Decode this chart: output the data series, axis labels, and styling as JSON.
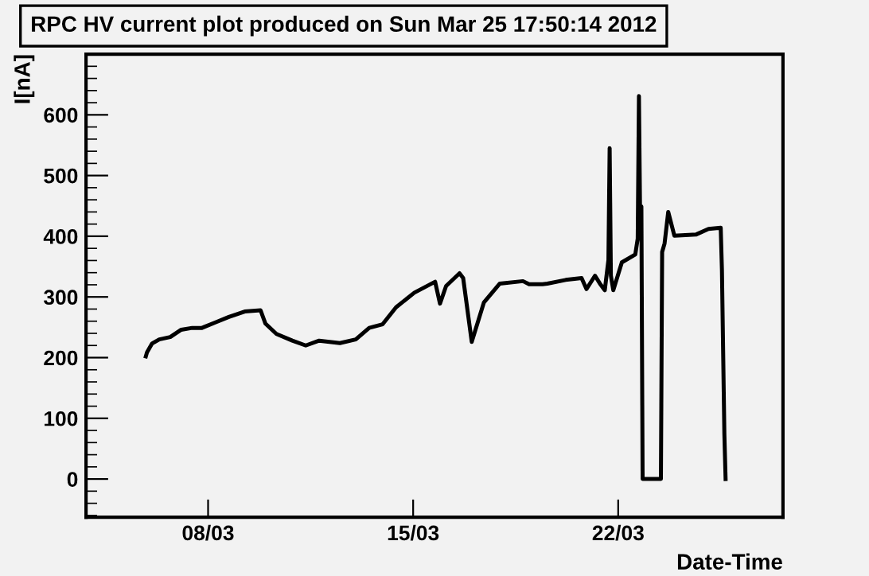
{
  "chart_data": {
    "type": "line",
    "title": "RPC HV current plot produced on Sun Mar 25 17:50:14 2012",
    "xlabel": "Date-Time",
    "ylabel": "I[nA]",
    "x": [
      "2012-03-05T21:00",
      "2012-03-05T22:00",
      "2012-03-06T02:00",
      "2012-03-06T08:00",
      "2012-03-06T17:00",
      "2012-03-07T02:00",
      "2012-03-07T11:00",
      "2012-03-07T19:00",
      "2012-03-08T06:00",
      "2012-03-08T17:00",
      "2012-03-09T06:00",
      "2012-03-09T19:00",
      "2012-03-09T23:00",
      "2012-03-10T08:00",
      "2012-03-10T21:00",
      "2012-03-11T08:00",
      "2012-03-11T19:00",
      "2012-03-12T12:00",
      "2012-03-13T01:00",
      "2012-03-13T12:00",
      "2012-03-13T23:00",
      "2012-03-14T10:00",
      "2012-03-15T01:00",
      "2012-03-15T18:00",
      "2012-03-15T22:00",
      "2012-03-16T03:00",
      "2012-03-16T14:00",
      "2012-03-16T17:00",
      "2012-03-17T00:00",
      "2012-03-17T10:00",
      "2012-03-17T23:00",
      "2012-03-18T18:00",
      "2012-03-18T23:00",
      "2012-03-19T10:00",
      "2012-03-19T14:00",
      "2012-03-20T05:00",
      "2012-03-20T18:00",
      "2012-03-20T22:00",
      "2012-03-21T05:00",
      "2012-03-21T09:00",
      "2012-03-21T13:00",
      "2012-03-21T16:00",
      "2012-03-21T17:00",
      "2012-03-21T18:00",
      "2012-03-21T20:00",
      "2012-03-22T03:00",
      "2012-03-22T14:00",
      "2012-03-22T16:00",
      "2012-03-22T17:00",
      "2012-03-22T18:00",
      "2012-03-22T19:00",
      "2012-03-22T20:00",
      "2012-03-23T11:00",
      "2012-03-23T12:00",
      "2012-03-23T14:00",
      "2012-03-23T17:00",
      "2012-03-23T22:00",
      "2012-03-24T16:00",
      "2012-03-25T02:00",
      "2012-03-25T12:00",
      "2012-03-25T13:00",
      "2012-03-25T14:00",
      "2012-03-25T15:00",
      "2012-03-25T16:00"
    ],
    "series": [
      {
        "color": "#000000",
        "values": [
          202,
          209,
          223,
          230,
          234,
          246,
          249,
          249,
          258,
          267,
          276,
          278,
          256,
          239,
          228,
          220,
          228,
          224,
          230,
          249,
          255,
          283,
          307,
          325,
          289,
          318,
          339,
          331,
          226,
          291,
          322,
          326,
          321,
          321,
          322,
          328,
          331,
          313,
          335,
          322,
          311,
          361,
          545,
          335,
          311,
          357,
          370,
          396,
          631,
          423,
          449,
          0,
          0,
          374,
          388,
          440,
          401,
          403,
          412,
          414,
          344,
          208,
          73,
          0
        ]
      }
    ],
    "xlim": [
      "2012-03-03T20:00",
      "2012-03-27T15:00"
    ],
    "xticks": [
      {
        "value": "2012-03-08",
        "label": "08/03"
      },
      {
        "value": "2012-03-15",
        "label": "15/03"
      },
      {
        "value": "2012-03-22",
        "label": "22/03"
      }
    ],
    "ylim": [
      -63,
      700
    ],
    "yticks": [
      0,
      100,
      200,
      300,
      400,
      500,
      600
    ],
    "grid": false,
    "legend": false,
    "marker": "none",
    "line_style": "solid"
  }
}
